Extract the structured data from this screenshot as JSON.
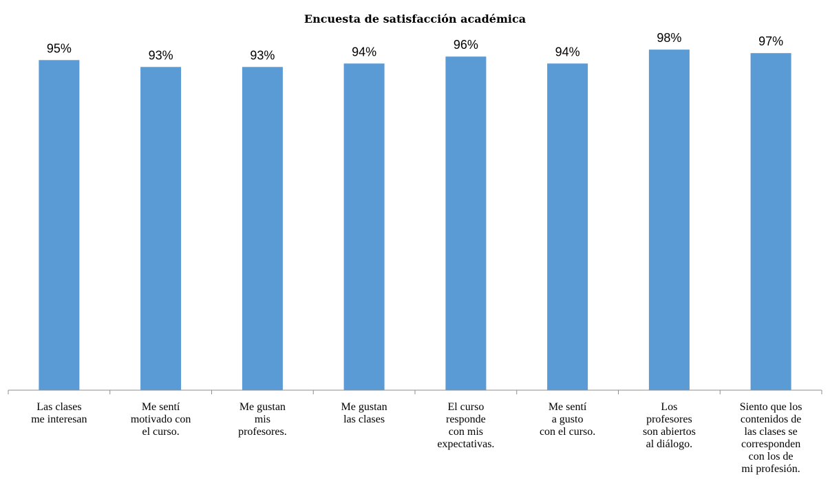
{
  "chart_data": {
    "type": "bar",
    "title": "Encuesta de satisfacción académica",
    "categories": [
      "Las clases\nme interesan",
      "Me sentí\nmotivado con\nel curso.",
      "Me gustan\nmis\nprofesores.",
      "Me gustan\nlas clases",
      "El curso\nresponde\ncon mis\nexpectativas.",
      "Me sentí\na gusto\ncon el curso.",
      "Los\nprofesores\nson abiertos\nal diálogo.",
      "Siento que los\ncontenidos de\nlas clases se\ncorresponden\ncon los de\nmi profesión."
    ],
    "values": [
      95,
      93,
      93,
      94,
      96,
      94,
      98,
      97
    ],
    "value_labels": [
      "95%",
      "93%",
      "93%",
      "94%",
      "96%",
      "94%",
      "98%",
      "97%"
    ],
    "value_unit": "%",
    "bar_color": "#5B9BD5",
    "ylim": [
      0,
      100
    ],
    "xlabel": "",
    "ylabel": "",
    "grid": false,
    "legend": "none"
  }
}
